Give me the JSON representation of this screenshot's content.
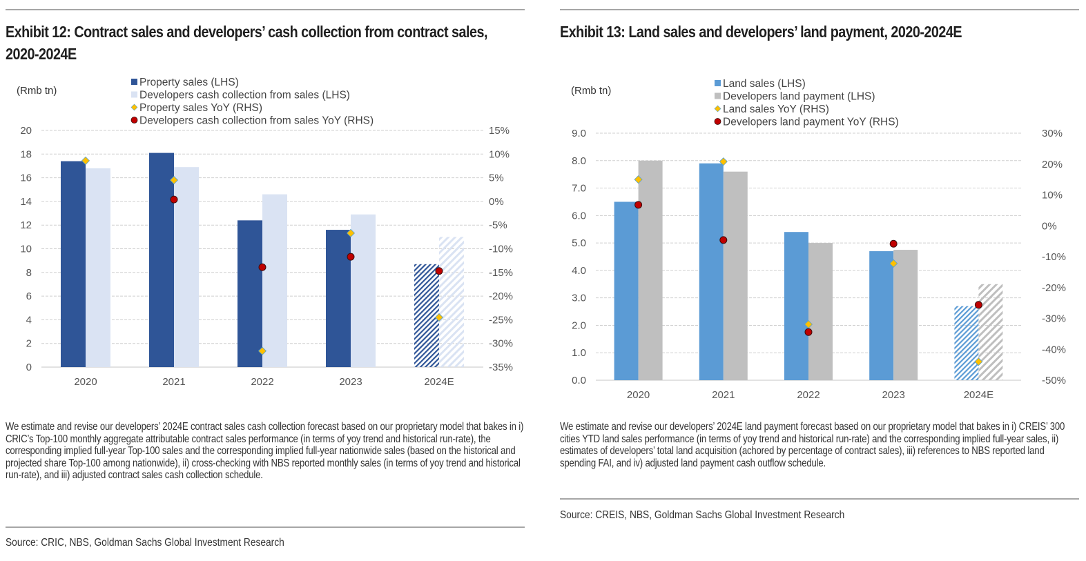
{
  "panels": [
    {
      "title": "Exhibit 12: Contract sales and developers’ cash collection from contract sales, 2020-2024E",
      "note": "We estimate and revise our developers’ 2024E contract sales cash collection forecast based on our proprietary model that bakes in i) CRIC’s Top-100 monthly aggregate attributable contract sales performance (in terms of yoy trend and historical run-rate), the corresponding implied full-year Top-100 sales and the corresponding implied full-year nationwide sales (based on the historical and projected share Top-100 among nationwide), ii) cross-checking with NBS reported monthly sales (in terms of yoy trend and historical run-rate), and iii) adjusted contract sales cash collection schedule.",
      "source": "Source: CRIC, NBS, Goldman Sachs Global Investment Research"
    },
    {
      "title": "Exhibit 13: Land sales and developers’ land payment, 2020-2024E",
      "note": "We estimate and revise our developers’ 2024E land payment forecast based on our proprietary model that bakes in i) CREIS’ 300 cities YTD land sales performance (in terms of yoy trend and historical run-rate) and the corresponding implied full-year sales, ii) estimates of developers’ total land acquisition (achored by percentage of contract sales), iii) references to NBS reported land spending FAI, and iv) adjusted land payment cash outflow schedule.",
      "source": "Source: CREIS, NBS, Goldman Sachs Global Investment Research"
    }
  ],
  "chart_data": [
    {
      "type": "bar",
      "title": "Exhibit 12: Contract sales and developers’ cash collection from contract sales, 2020-2024E",
      "unit_label": "(Rmb tn)",
      "categories": [
        "2020",
        "2021",
        "2022",
        "2023",
        "2024E"
      ],
      "estimate_categories": [
        "2024E"
      ],
      "ylim": [
        0,
        20
      ],
      "yticks": [
        0,
        2,
        4,
        6,
        8,
        10,
        12,
        14,
        16,
        18,
        20
      ],
      "ytick_labels": [
        "0",
        "2",
        "4",
        "6",
        "8",
        "10",
        "12",
        "14",
        "16",
        "18",
        "20"
      ],
      "y2lim": [
        -35,
        15
      ],
      "y2ticks": [
        -35,
        -30,
        -25,
        -20,
        -15,
        -10,
        -5,
        0,
        5,
        10,
        15
      ],
      "y2tick_labels": [
        "-35%",
        "-30%",
        "-25%",
        "-20%",
        "-15%",
        "-10%",
        "-5%",
        "0%",
        "5%",
        "10%",
        "15%"
      ],
      "grid": true,
      "legend_position": "top",
      "series": [
        {
          "name": "Property sales (LHS)",
          "kind": "bar",
          "axis": "left",
          "color": "#2F5597",
          "values": [
            17.4,
            18.1,
            12.4,
            11.6,
            8.7
          ]
        },
        {
          "name": "Developers cash collection from sales (LHS)",
          "kind": "bar",
          "axis": "left",
          "color": "#DAE3F3",
          "values": [
            16.8,
            16.9,
            14.6,
            12.9,
            11.0
          ]
        },
        {
          "name": "Property sales YoY (RHS)",
          "kind": "diamond",
          "axis": "right",
          "color": "#FFC000",
          "values": [
            8.6,
            4.5,
            -31.6,
            -6.7,
            -24.5
          ]
        },
        {
          "name": "Developers cash collection from sales YoY (RHS)",
          "kind": "circle",
          "axis": "right",
          "color": "#C00000",
          "values": [
            null,
            0.4,
            -13.9,
            -11.7,
            -14.7
          ]
        }
      ]
    },
    {
      "type": "bar",
      "title": "Exhibit 13: Land sales and developers’ land payment, 2020-2024E",
      "unit_label": "(Rmb tn)",
      "categories": [
        "2020",
        "2021",
        "2022",
        "2023",
        "2024E"
      ],
      "estimate_categories": [
        "2024E"
      ],
      "ylim": [
        0,
        9
      ],
      "yticks": [
        0,
        1,
        2,
        3,
        4,
        5,
        6,
        7,
        8,
        9
      ],
      "ytick_labels": [
        "0.0",
        "1.0",
        "2.0",
        "3.0",
        "4.0",
        "5.0",
        "6.0",
        "7.0",
        "8.0",
        "9.0"
      ],
      "y2lim": [
        -50,
        30
      ],
      "y2ticks": [
        -50,
        -40,
        -30,
        -20,
        -10,
        0,
        10,
        20,
        30
      ],
      "y2tick_labels": [
        "-50%",
        "-40%",
        "-30%",
        "-20%",
        "-10%",
        "0%",
        "10%",
        "20%",
        "30%"
      ],
      "grid": true,
      "legend_position": "top",
      "series": [
        {
          "name": "Land sales (LHS)",
          "kind": "bar",
          "axis": "left",
          "color": "#5B9BD5",
          "values": [
            6.5,
            7.9,
            5.4,
            4.7,
            2.7
          ]
        },
        {
          "name": "Developers land payment (LHS)",
          "kind": "bar",
          "axis": "left",
          "color": "#BFBFBF",
          "values": [
            8.0,
            7.6,
            5.0,
            4.75,
            3.5
          ]
        },
        {
          "name": "Land sales YoY (RHS)",
          "kind": "diamond",
          "axis": "right",
          "color": "#FFC000",
          "values": [
            15.0,
            20.8,
            -31.9,
            -12.2,
            -44.0
          ]
        },
        {
          "name": "Developers land payment YoY (RHS)",
          "kind": "circle",
          "axis": "right",
          "color": "#C00000",
          "values": [
            6.8,
            -4.6,
            -34.4,
            -5.8,
            -25.6
          ]
        }
      ]
    }
  ]
}
